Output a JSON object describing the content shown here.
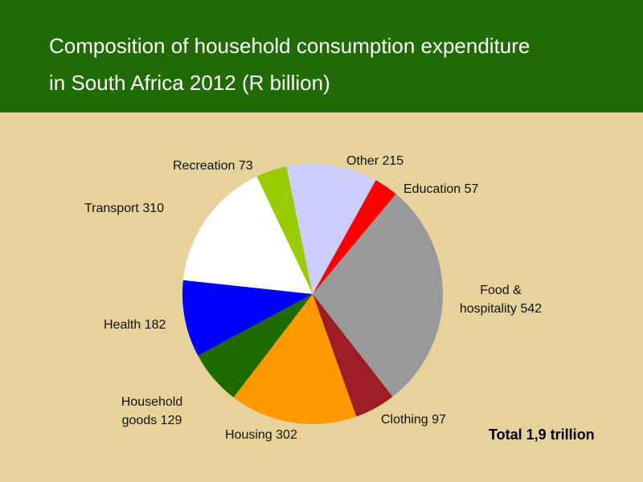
{
  "title": {
    "line1": "Composition of household consumption expenditure",
    "line2": "in South Africa 2012 (R billion)"
  },
  "total_label": "Total 1,9 trillion",
  "colors": {
    "header_bg": "#206b05",
    "page_bg": "#e6d29a"
  },
  "chart_data": {
    "type": "pie",
    "title": "Composition of household consumption expenditure in South Africa 2012 (R billion)",
    "unit": "R billion",
    "start_angle_deg": 0,
    "slices": [
      {
        "name": "Education",
        "value": 57,
        "color": "#ff0000",
        "label_lines": [
          "Education 57"
        ]
      },
      {
        "name": "Food & hospitality",
        "value": 542,
        "color": "#999999",
        "label_lines": [
          "Food &",
          "hospitality 542"
        ]
      },
      {
        "name": "Clothing",
        "value": 97,
        "color": "#9e1c24",
        "label_lines": [
          "Clothing 97"
        ]
      },
      {
        "name": "Housing",
        "value": 302,
        "color": "#ff9900",
        "label_lines": [
          "Housing 302"
        ]
      },
      {
        "name": "Household goods",
        "value": 129,
        "color": "#1f6b00",
        "label_lines": [
          "Household",
          "goods 129"
        ]
      },
      {
        "name": "Health",
        "value": 182,
        "color": "#0000ff",
        "label_lines": [
          "Health 182"
        ]
      },
      {
        "name": "Transport",
        "value": 310,
        "color": "#ffffff",
        "label_lines": [
          "Transport 310"
        ]
      },
      {
        "name": "Recreation",
        "value": 73,
        "color": "#99cc00",
        "label_lines": [
          "Recreation 73"
        ]
      },
      {
        "name": "Other",
        "value": 215,
        "color": "#ccccff",
        "label_lines": [
          "Other 215"
        ]
      }
    ],
    "annotation": "Total 1,9 trillion"
  }
}
